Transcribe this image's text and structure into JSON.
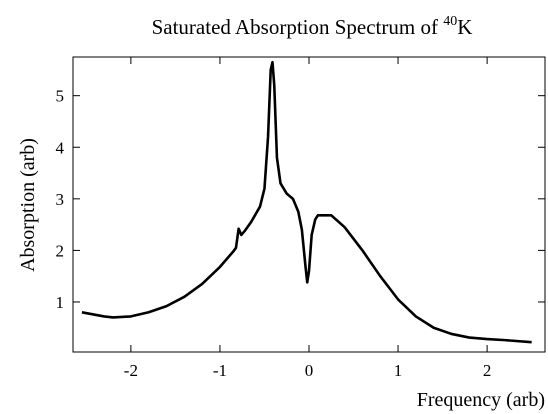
{
  "chart_data": {
    "type": "line",
    "title": {
      "text": "Saturated Absorption Spectrum of",
      "superscript": "40",
      "symbol": "K"
    },
    "xlabel": "Frequency (arb)",
    "ylabel": "Absorption (arb)",
    "xlim": [
      -2.65,
      2.65
    ],
    "ylim": [
      0.03,
      5.75
    ],
    "xticks": [
      -2,
      -1,
      0,
      1,
      2
    ],
    "yticks": [
      1,
      2,
      3,
      4,
      5
    ],
    "grid": false,
    "series": [
      {
        "color": "#000000",
        "x": [
          -2.55,
          -2.3,
          -2.2,
          -2.0,
          -1.8,
          -1.6,
          -1.4,
          -1.2,
          -1.0,
          -0.85,
          -0.82,
          -0.79,
          -0.76,
          -0.72,
          -0.65,
          -0.55,
          -0.5,
          -0.46,
          -0.43,
          -0.41,
          -0.39,
          -0.36,
          -0.32,
          -0.25,
          -0.18,
          -0.12,
          -0.08,
          -0.04,
          -0.02,
          0.0,
          0.03,
          0.07,
          0.1,
          0.25,
          0.4,
          0.6,
          0.8,
          1.0,
          1.2,
          1.4,
          1.6,
          1.8,
          2.0,
          2.2,
          2.5
        ],
        "values": [
          0.8,
          0.72,
          0.7,
          0.72,
          0.8,
          0.92,
          1.1,
          1.35,
          1.68,
          1.98,
          2.05,
          2.42,
          2.3,
          2.38,
          2.55,
          2.85,
          3.2,
          4.2,
          5.5,
          5.65,
          5.2,
          3.8,
          3.3,
          3.1,
          3.0,
          2.75,
          2.4,
          1.7,
          1.38,
          1.6,
          2.3,
          2.6,
          2.68,
          2.68,
          2.45,
          2.0,
          1.5,
          1.05,
          0.72,
          0.5,
          0.38,
          0.31,
          0.28,
          0.26,
          0.22
        ]
      }
    ]
  }
}
